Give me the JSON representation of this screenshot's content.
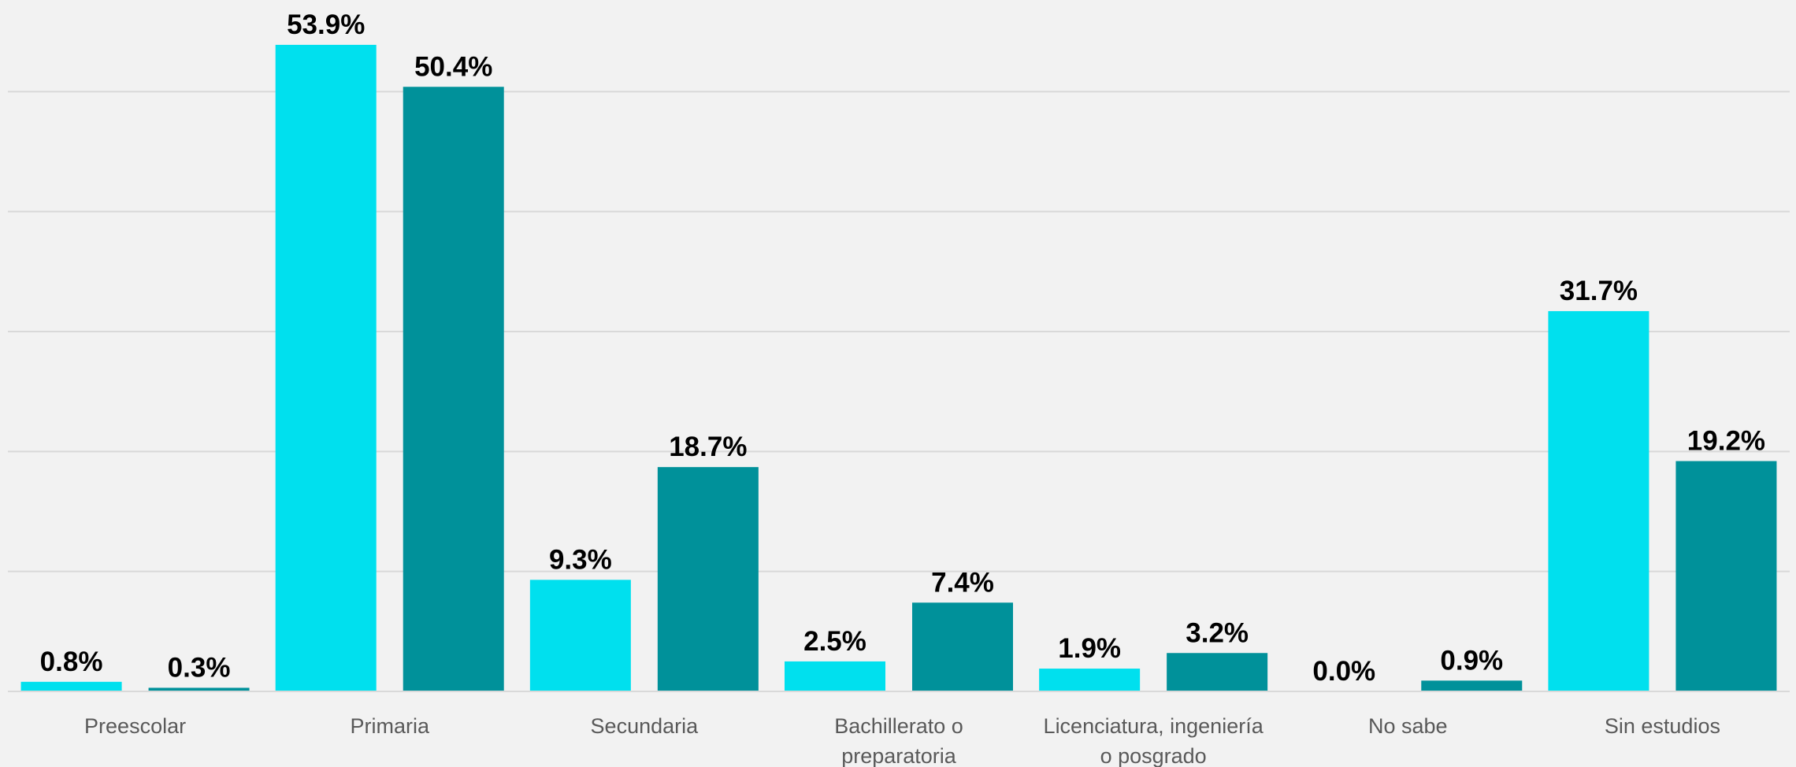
{
  "chart_data": {
    "type": "bar",
    "categories": [
      "Preescolar",
      "Primaria",
      "Secundaria",
      [
        "Bachillerato o",
        "preparatoria"
      ],
      [
        "Licenciatura, ingeniería",
        "o posgrado"
      ],
      "No sabe",
      "Sin estudios"
    ],
    "series": [
      {
        "values": [
          0.8,
          53.9,
          9.3,
          2.5,
          1.9,
          0.0,
          31.7
        ],
        "color": "#00e0ee"
      },
      {
        "values": [
          0.3,
          50.4,
          18.7,
          7.4,
          3.2,
          0.9,
          19.2
        ],
        "color": "#00919a"
      }
    ],
    "value_labels": [
      [
        "0.8%",
        "53.9%",
        "9.3%",
        "2.5%",
        "1.9%",
        "0.0%",
        "31.7%"
      ],
      [
        "0.3%",
        "50.4%",
        "18.7%",
        "7.4%",
        "3.2%",
        "0.9%",
        "19.2%"
      ]
    ],
    "ylim": [
      0,
      55
    ],
    "gridlines": [
      10,
      20,
      30,
      40,
      50
    ],
    "grid": true,
    "legend": false
  }
}
